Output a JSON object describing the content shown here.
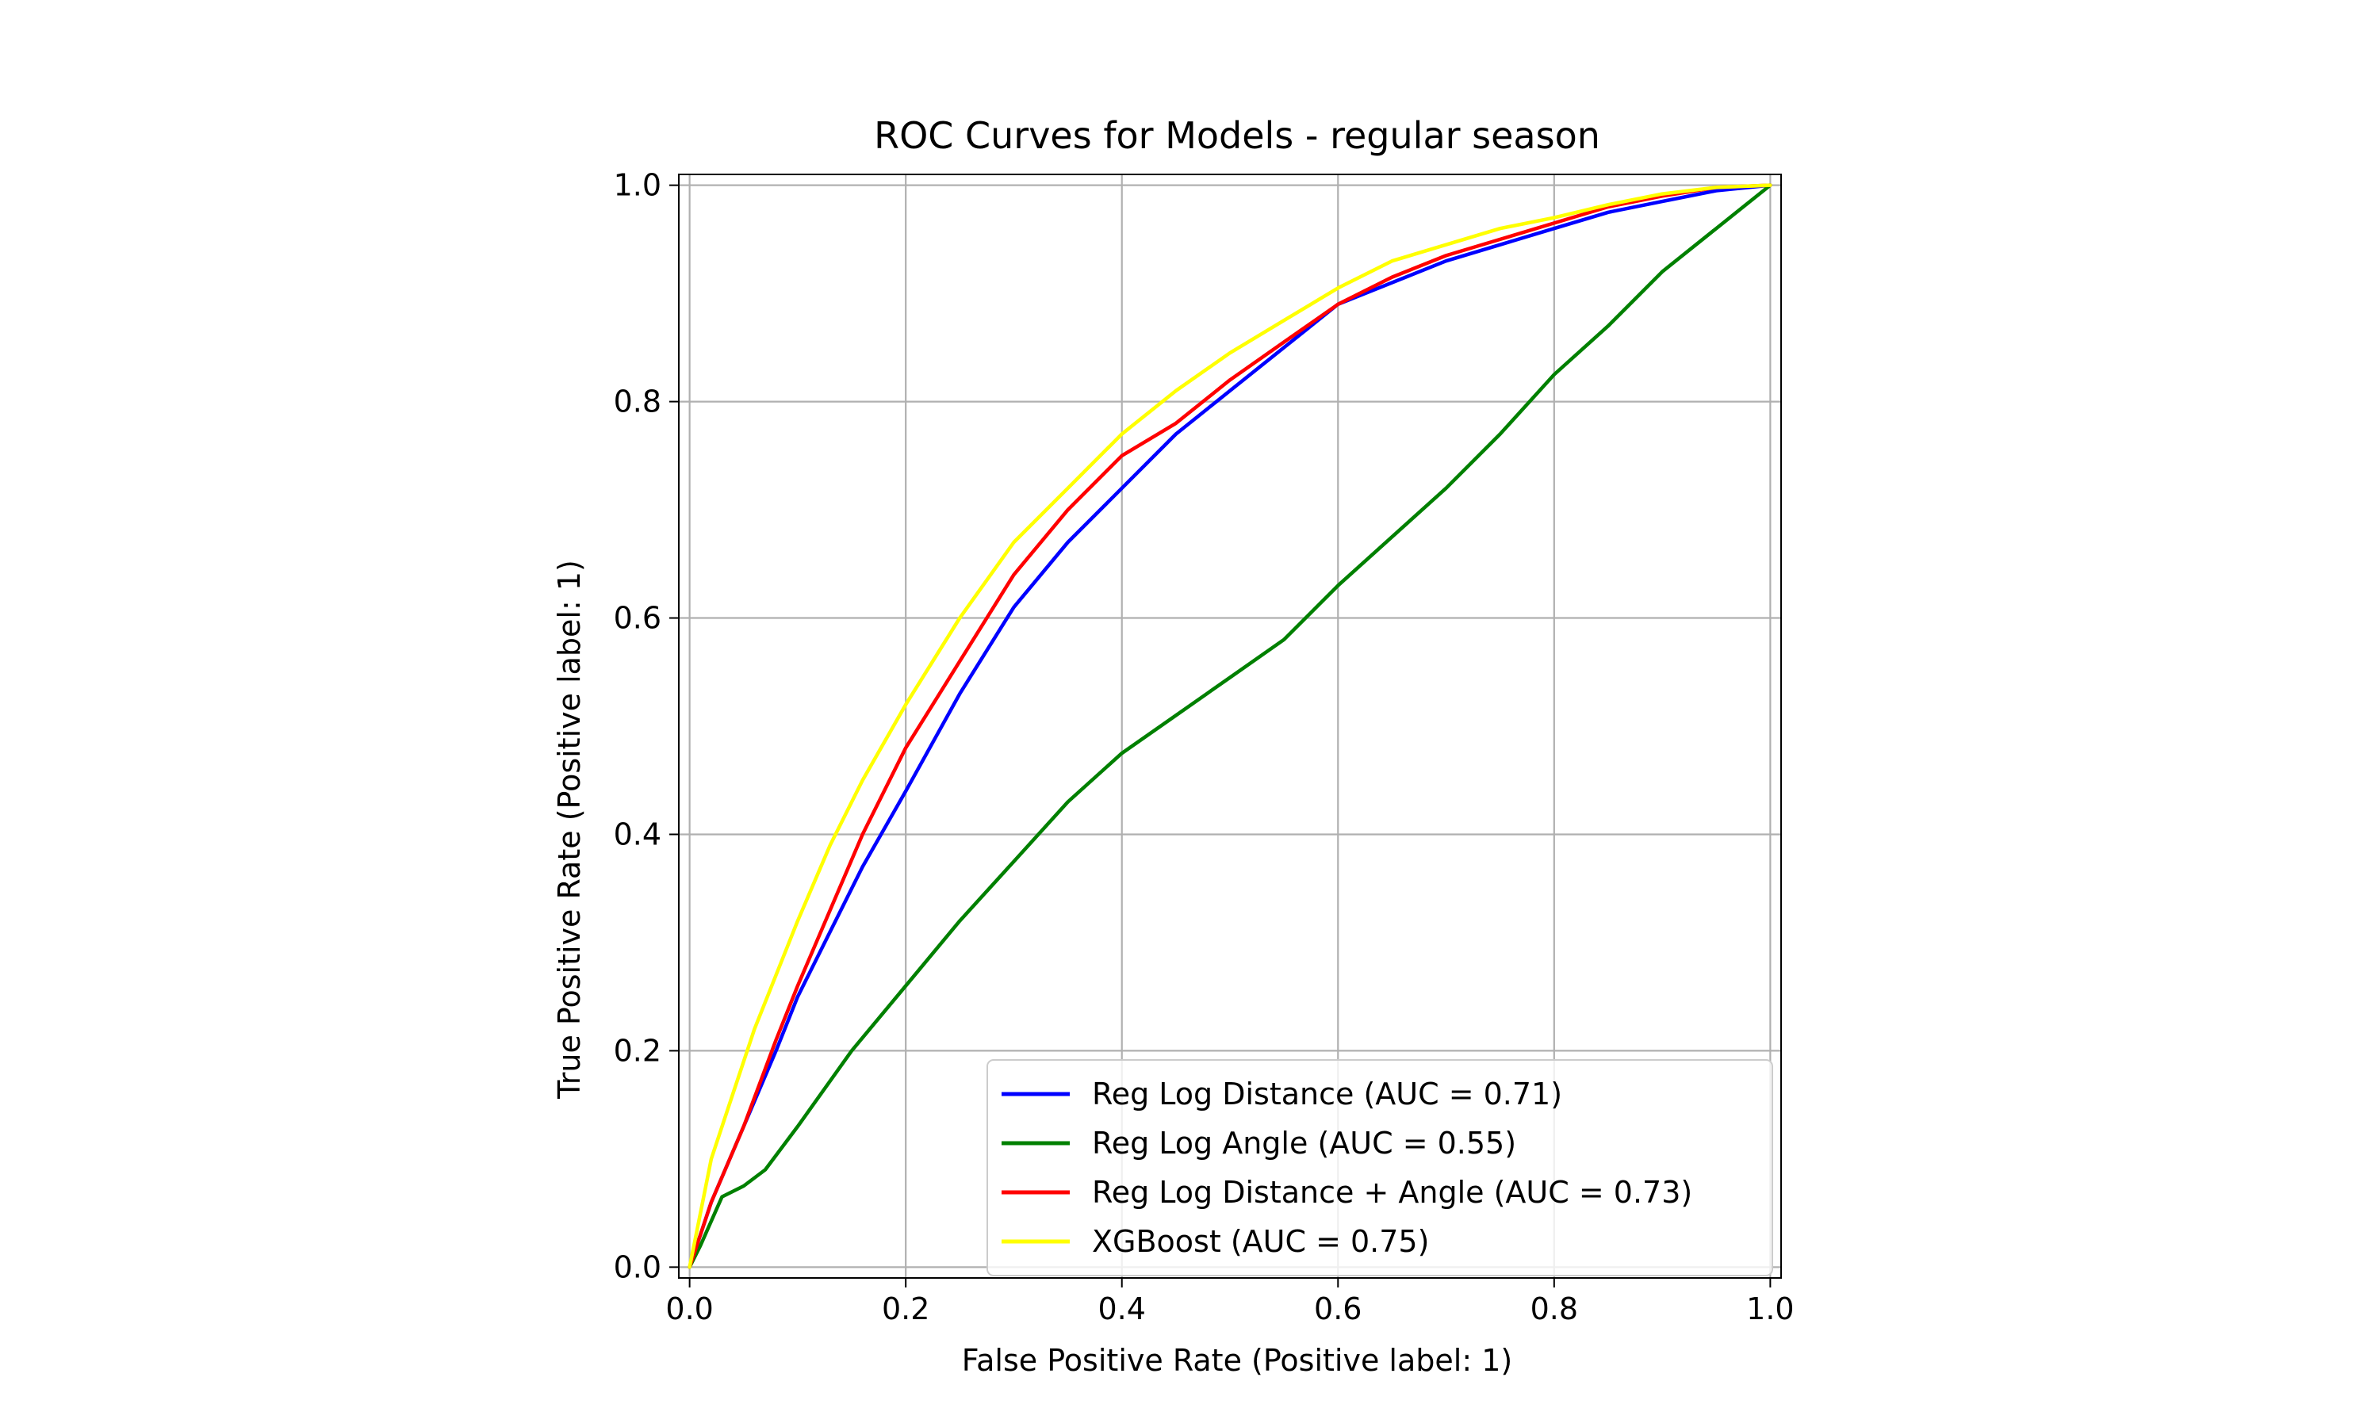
{
  "chart_data": {
    "type": "line",
    "title": "ROC Curves for Models - regular season",
    "xlabel": "False Positive Rate (Positive label: 1)",
    "ylabel": "True Positive Rate (Positive label: 1)",
    "xlim": [
      -0.01,
      1.01
    ],
    "ylim": [
      -0.01,
      1.01
    ],
    "xticks": [
      0.0,
      0.2,
      0.4,
      0.6,
      0.8,
      1.0
    ],
    "yticks": [
      0.0,
      0.2,
      0.4,
      0.6,
      0.8,
      1.0
    ],
    "xtick_labels": [
      "0.0",
      "0.2",
      "0.4",
      "0.6",
      "0.8",
      "1.0"
    ],
    "ytick_labels": [
      "0.0",
      "0.2",
      "0.4",
      "0.6",
      "0.8",
      "1.0"
    ],
    "grid": true,
    "legend_position": "lower-right",
    "series": [
      {
        "name": "Reg Log Distance (AUC = 0.71)",
        "color": "#0000ff",
        "points": [
          [
            0,
            0
          ],
          [
            0.02,
            0.06
          ],
          [
            0.05,
            0.13
          ],
          [
            0.08,
            0.2
          ],
          [
            0.1,
            0.25
          ],
          [
            0.13,
            0.31
          ],
          [
            0.16,
            0.37
          ],
          [
            0.2,
            0.44
          ],
          [
            0.25,
            0.53
          ],
          [
            0.3,
            0.61
          ],
          [
            0.35,
            0.67
          ],
          [
            0.4,
            0.72
          ],
          [
            0.45,
            0.77
          ],
          [
            0.5,
            0.81
          ],
          [
            0.55,
            0.85
          ],
          [
            0.6,
            0.89
          ],
          [
            0.65,
            0.91
          ],
          [
            0.7,
            0.93
          ],
          [
            0.75,
            0.945
          ],
          [
            0.8,
            0.96
          ],
          [
            0.85,
            0.975
          ],
          [
            0.9,
            0.985
          ],
          [
            0.95,
            0.995
          ],
          [
            1.0,
            1.0
          ]
        ]
      },
      {
        "name": "Reg Log Angle (AUC = 0.55)",
        "color": "#008000",
        "points": [
          [
            0,
            0
          ],
          [
            0.01,
            0.02
          ],
          [
            0.03,
            0.065
          ],
          [
            0.05,
            0.075
          ],
          [
            0.07,
            0.09
          ],
          [
            0.1,
            0.13
          ],
          [
            0.15,
            0.2
          ],
          [
            0.2,
            0.26
          ],
          [
            0.25,
            0.32
          ],
          [
            0.3,
            0.375
          ],
          [
            0.35,
            0.43
          ],
          [
            0.4,
            0.475
          ],
          [
            0.45,
            0.51
          ],
          [
            0.5,
            0.545
          ],
          [
            0.55,
            0.58
          ],
          [
            0.6,
            0.63
          ],
          [
            0.65,
            0.675
          ],
          [
            0.7,
            0.72
          ],
          [
            0.75,
            0.77
          ],
          [
            0.8,
            0.825
          ],
          [
            0.85,
            0.87
          ],
          [
            0.9,
            0.92
          ],
          [
            0.95,
            0.96
          ],
          [
            1.0,
            1.0
          ]
        ]
      },
      {
        "name": "Reg Log Distance + Angle (AUC = 0.73)",
        "color": "#ff0000",
        "points": [
          [
            0,
            0
          ],
          [
            0.02,
            0.06
          ],
          [
            0.05,
            0.13
          ],
          [
            0.08,
            0.21
          ],
          [
            0.1,
            0.26
          ],
          [
            0.13,
            0.33
          ],
          [
            0.16,
            0.4
          ],
          [
            0.2,
            0.48
          ],
          [
            0.25,
            0.56
          ],
          [
            0.3,
            0.64
          ],
          [
            0.35,
            0.7
          ],
          [
            0.4,
            0.75
          ],
          [
            0.45,
            0.78
          ],
          [
            0.5,
            0.82
          ],
          [
            0.55,
            0.855
          ],
          [
            0.6,
            0.89
          ],
          [
            0.65,
            0.915
          ],
          [
            0.7,
            0.935
          ],
          [
            0.75,
            0.95
          ],
          [
            0.8,
            0.965
          ],
          [
            0.85,
            0.98
          ],
          [
            0.9,
            0.99
          ],
          [
            0.95,
            0.998
          ],
          [
            1.0,
            1.0
          ]
        ]
      },
      {
        "name": "XGBoost (AUC = 0.75)",
        "color": "#ffff00",
        "points": [
          [
            0,
            0
          ],
          [
            0.01,
            0.05
          ],
          [
            0.02,
            0.1
          ],
          [
            0.04,
            0.16
          ],
          [
            0.06,
            0.22
          ],
          [
            0.08,
            0.27
          ],
          [
            0.1,
            0.32
          ],
          [
            0.13,
            0.39
          ],
          [
            0.16,
            0.45
          ],
          [
            0.2,
            0.52
          ],
          [
            0.25,
            0.6
          ],
          [
            0.3,
            0.67
          ],
          [
            0.35,
            0.72
          ],
          [
            0.4,
            0.77
          ],
          [
            0.45,
            0.81
          ],
          [
            0.5,
            0.845
          ],
          [
            0.55,
            0.875
          ],
          [
            0.6,
            0.905
          ],
          [
            0.65,
            0.93
          ],
          [
            0.7,
            0.945
          ],
          [
            0.75,
            0.96
          ],
          [
            0.8,
            0.97
          ],
          [
            0.85,
            0.982
          ],
          [
            0.9,
            0.992
          ],
          [
            0.95,
            0.998
          ],
          [
            1.0,
            1.0
          ]
        ]
      }
    ]
  }
}
